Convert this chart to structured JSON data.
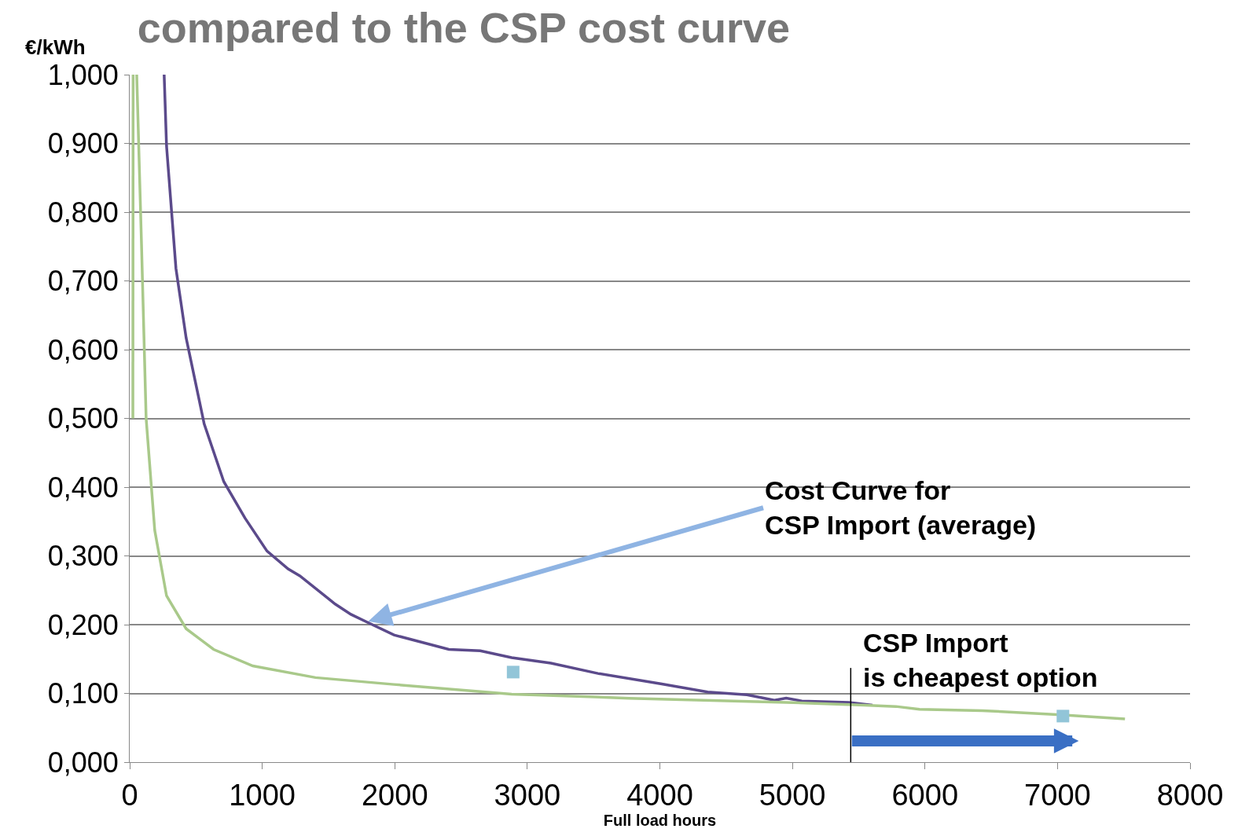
{
  "chart_data": {
    "type": "line",
    "title": "compared to the CSP cost curve",
    "xlabel": "Full load hours",
    "ylabel": "€/kWh",
    "xlim": [
      0,
      8000
    ],
    "xticks": [
      0,
      1000,
      2000,
      3000,
      4000,
      5000,
      6000,
      7000,
      8000
    ],
    "ylim": [
      0,
      1
    ],
    "yticks": [
      {
        "value": 0,
        "label": "0,000"
      },
      {
        "value": 0.1,
        "label": "0,100"
      },
      {
        "value": 0.2,
        "label": "0,200"
      },
      {
        "value": 0.3,
        "label": "0,300"
      },
      {
        "value": 0.4,
        "label": "0,400"
      },
      {
        "value": 0.5,
        "label": "0,500"
      },
      {
        "value": 0.6,
        "label": "0,600"
      },
      {
        "value": 0.7,
        "label": "0,700"
      },
      {
        "value": 0.8,
        "label": "0,800"
      },
      {
        "value": 0.9,
        "label": "0,900"
      },
      {
        "value": 1.0,
        "label": "1,000"
      }
    ],
    "grid": "y",
    "marker": "none",
    "line_style": "solid",
    "series": [
      {
        "color": "#5b4a8b",
        "x": [
          260,
          278,
          349,
          426,
          562,
          710,
          870,
          1036,
          1195,
          1284,
          1550,
          1669,
          1787,
          1994,
          2408,
          2645,
          2882,
          3178,
          3533,
          4006,
          4361,
          4657,
          4864,
          4953,
          5071,
          5426,
          5604
        ],
        "values": [
          1.0,
          0.896,
          0.718,
          0.617,
          0.492,
          0.408,
          0.355,
          0.307,
          0.281,
          0.271,
          0.23,
          0.215,
          0.204,
          0.185,
          0.164,
          0.162,
          0.152,
          0.144,
          0.129,
          0.114,
          0.102,
          0.098,
          0.09,
          0.093,
          0.089,
          0.087,
          0.083
        ]
      },
      {
        "color": "#a9c98a",
        "x": [
          24,
          26,
          40,
          53,
          89,
          124,
          189,
          278,
          426,
          633,
          929,
          1402,
          1994,
          2882,
          3769,
          4953,
          5544,
          5781,
          5959,
          6432,
          7024,
          7509
        ],
        "values": [
          0.5,
          1.0,
          null,
          1.0,
          0.754,
          0.5,
          0.337,
          0.242,
          0.194,
          0.164,
          0.14,
          0.123,
          0.113,
          0.099,
          0.093,
          0.087,
          0.083,
          0.081,
          0.077,
          0.075,
          0.069,
          0.063
        ]
      },
      {
        "type": "scatter",
        "marker": "square",
        "color": "#92c5d8",
        "x": [
          2893,
          7041
        ],
        "values": [
          0.131,
          0.067
        ]
      }
    ],
    "ref_lines": [
      {
        "axis": "x",
        "value": 5440,
        "label": "CSP Import\nis cheapest option",
        "color": "#000000"
      }
    ],
    "annotations": [
      {
        "text": "Cost Curve for\nCSP Import (average)",
        "x": 1800,
        "y": 0.205
      }
    ]
  }
}
